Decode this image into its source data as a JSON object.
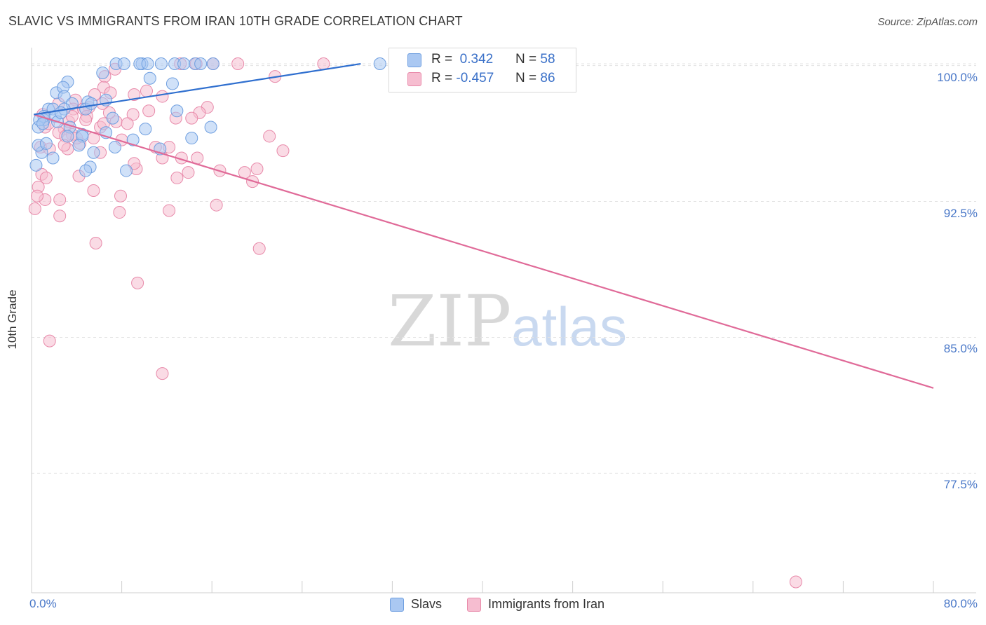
{
  "title": "SLAVIC VS IMMIGRANTS FROM IRAN 10TH GRADE CORRELATION CHART",
  "source": "Source: ZipAtlas.com",
  "watermark": {
    "zip": "ZIP",
    "atlas": "atlas"
  },
  "colors": {
    "blue": "#6f9fe0",
    "blue_fill": "#aac8f2",
    "blue_line": "#2f6fcf",
    "pink": "#e88aaa",
    "pink_fill": "#f6bdd0",
    "pink_line": "#e06a98",
    "grid": "#e3e3e3",
    "tick_text": "#4a78c8"
  },
  "legend": {
    "series1": {
      "r_label": "R =",
      "r_value": "0.342",
      "n_label": "N =",
      "n_value": "58"
    },
    "series2": {
      "r_label": "R =",
      "r_value": "-0.457",
      "n_label": "N =",
      "n_value": "86"
    }
  },
  "bottom_legend": [
    "Slavs",
    "Immigrants from Iran"
  ],
  "chart_data": {
    "type": "scatter",
    "title": "SLAVIC VS IMMIGRANTS FROM IRAN 10TH GRADE CORRELATION CHART",
    "xlabel": "",
    "ylabel": "10th Grade",
    "xlim": [
      0,
      80
    ],
    "ylim": [
      70.9,
      101.3
    ],
    "x_tick_labels": [
      "0.0%",
      "80.0%"
    ],
    "y_ticks": [
      100.0,
      92.5,
      85.0,
      77.5
    ],
    "y_tick_labels": [
      "100.0%",
      "92.5%",
      "85.0%",
      "77.5%"
    ],
    "grid": true,
    "series": [
      {
        "name": "Slavs",
        "color": "blue",
        "r": 0.342,
        "n": 58,
        "trend": [
          [
            0.2,
            97.3
          ],
          [
            29.2,
            100.1
          ]
        ],
        "points": [
          [
            7.5,
            100.1
          ],
          [
            8.2,
            100.1
          ],
          [
            9.8,
            100.1
          ],
          [
            9.6,
            100.1
          ],
          [
            10.3,
            100.1
          ],
          [
            11.5,
            100.1
          ],
          [
            12.7,
            100.1
          ],
          [
            13.5,
            100.1
          ],
          [
            14.5,
            100.1
          ],
          [
            15.0,
            100.1
          ],
          [
            16.1,
            100.1
          ],
          [
            30.9,
            100.1
          ],
          [
            6.3,
            99.6
          ],
          [
            10.5,
            99.3
          ],
          [
            12.5,
            99.0
          ],
          [
            3.2,
            99.1
          ],
          [
            2.2,
            98.5
          ],
          [
            5.0,
            98.0
          ],
          [
            6.6,
            98.1
          ],
          [
            2.8,
            98.8
          ],
          [
            2.9,
            98.3
          ],
          [
            3.6,
            97.9
          ],
          [
            4.8,
            97.6
          ],
          [
            5.3,
            97.9
          ],
          [
            1.5,
            97.6
          ],
          [
            1.9,
            97.6
          ],
          [
            1.1,
            97.0
          ],
          [
            0.6,
            96.6
          ],
          [
            2.9,
            97.6
          ],
          [
            2.1,
            97.2
          ],
          [
            7.2,
            97.1
          ],
          [
            1.1,
            97.2
          ],
          [
            0.7,
            97.0
          ],
          [
            1.0,
            96.8
          ],
          [
            3.4,
            96.6
          ],
          [
            12.9,
            97.5
          ],
          [
            2.3,
            96.9
          ],
          [
            10.1,
            96.5
          ],
          [
            4.5,
            96.2
          ],
          [
            3.2,
            96.1
          ],
          [
            15.9,
            96.6
          ],
          [
            9.0,
            95.9
          ],
          [
            14.2,
            96.0
          ],
          [
            0.9,
            95.2
          ],
          [
            0.6,
            95.6
          ],
          [
            1.3,
            95.7
          ],
          [
            1.9,
            94.9
          ],
          [
            0.4,
            94.5
          ],
          [
            8.4,
            94.2
          ],
          [
            11.4,
            95.4
          ],
          [
            6.6,
            96.3
          ],
          [
            4.5,
            96.1
          ],
          [
            4.2,
            95.6
          ],
          [
            7.4,
            95.5
          ],
          [
            5.5,
            95.2
          ],
          [
            5.2,
            94.4
          ],
          [
            4.8,
            94.2
          ],
          [
            2.6,
            97.4
          ]
        ]
      },
      {
        "name": "Immigrants from Iran",
        "color": "pink",
        "r": -0.457,
        "n": 86,
        "trend": [
          [
            0.2,
            97.3
          ],
          [
            80.0,
            82.2
          ]
        ],
        "points": [
          [
            14.6,
            100.1
          ],
          [
            16.1,
            100.1
          ],
          [
            18.3,
            100.1
          ],
          [
            25.9,
            100.1
          ],
          [
            13.2,
            100.1
          ],
          [
            7.4,
            99.8
          ],
          [
            6.5,
            99.4
          ],
          [
            21.6,
            99.4
          ],
          [
            6.4,
            98.8
          ],
          [
            5.6,
            98.4
          ],
          [
            7.0,
            98.5
          ],
          [
            3.9,
            98.1
          ],
          [
            9.1,
            98.4
          ],
          [
            10.2,
            98.6
          ],
          [
            11.6,
            98.3
          ],
          [
            6.3,
            97.9
          ],
          [
            5.1,
            97.7
          ],
          [
            2.4,
            97.9
          ],
          [
            3.7,
            97.6
          ],
          [
            4.6,
            97.6
          ],
          [
            1.0,
            97.3
          ],
          [
            15.6,
            97.7
          ],
          [
            9.0,
            97.3
          ],
          [
            10.4,
            97.5
          ],
          [
            12.8,
            97.1
          ],
          [
            14.9,
            97.4
          ],
          [
            14.2,
            97.1
          ],
          [
            4.9,
            97.2
          ],
          [
            7.5,
            96.9
          ],
          [
            8.5,
            96.8
          ],
          [
            6.1,
            96.6
          ],
          [
            6.4,
            96.8
          ],
          [
            21.1,
            96.1
          ],
          [
            2.9,
            96.5
          ],
          [
            3.6,
            96.2
          ],
          [
            1.2,
            96.6
          ],
          [
            2.4,
            96.3
          ],
          [
            3.0,
            96.1
          ],
          [
            5.5,
            96.0
          ],
          [
            8.0,
            95.9
          ],
          [
            4.3,
            95.7
          ],
          [
            0.8,
            95.5
          ],
          [
            1.6,
            95.4
          ],
          [
            11.0,
            95.5
          ],
          [
            12.2,
            95.5
          ],
          [
            3.2,
            95.4
          ],
          [
            6.1,
            95.2
          ],
          [
            11.6,
            94.9
          ],
          [
            13.3,
            94.9
          ],
          [
            14.7,
            94.9
          ],
          [
            9.3,
            94.3
          ],
          [
            18.9,
            94.1
          ],
          [
            13.9,
            94.1
          ],
          [
            16.7,
            94.2
          ],
          [
            0.9,
            94.0
          ],
          [
            20.0,
            94.3
          ],
          [
            4.2,
            93.9
          ],
          [
            1.3,
            93.8
          ],
          [
            12.9,
            93.8
          ],
          [
            19.6,
            93.6
          ],
          [
            0.6,
            93.3
          ],
          [
            5.5,
            93.1
          ],
          [
            2.5,
            92.6
          ],
          [
            7.9,
            92.8
          ],
          [
            1.2,
            92.6
          ],
          [
            16.4,
            92.3
          ],
          [
            0.3,
            92.1
          ],
          [
            7.8,
            91.9
          ],
          [
            0.5,
            92.8
          ],
          [
            2.5,
            91.7
          ],
          [
            12.2,
            92.0
          ],
          [
            5.7,
            90.2
          ],
          [
            20.2,
            89.9
          ],
          [
            9.4,
            88.0
          ],
          [
            1.6,
            84.8
          ],
          [
            11.6,
            83.0
          ],
          [
            67.8,
            71.5
          ],
          [
            9.1,
            94.6
          ],
          [
            2.9,
            95.6
          ],
          [
            6.9,
            97.4
          ],
          [
            3.3,
            96.9
          ],
          [
            4.0,
            96.0
          ],
          [
            22.3,
            95.3
          ],
          [
            4.8,
            97.0
          ],
          [
            1.5,
            96.8
          ],
          [
            3.6,
            97.2
          ]
        ]
      }
    ]
  }
}
